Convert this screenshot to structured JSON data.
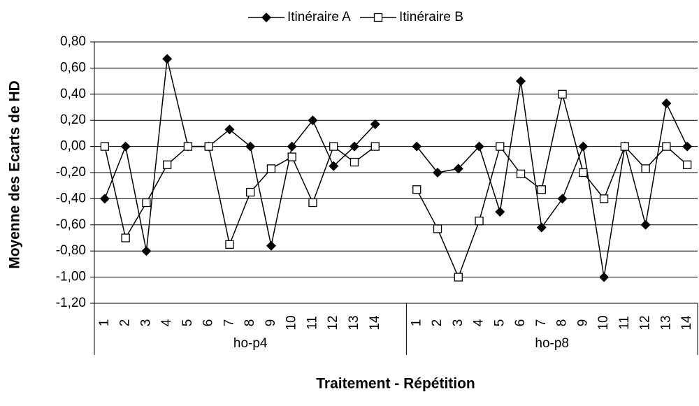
{
  "chart_data": {
    "type": "line",
    "xlabel": "Traitement - Répétition",
    "ylabel": "Moyenne des Ecarts de HD",
    "categories": [
      "1",
      "2",
      "3",
      "4",
      "5",
      "6",
      "7",
      "8",
      "9",
      "10",
      "11",
      "12",
      "13",
      "14",
      null,
      "1",
      "2",
      "3",
      "4",
      "5",
      "6",
      "7",
      "8",
      "9",
      "10",
      "11",
      "12",
      "13",
      "14"
    ],
    "groups": [
      {
        "label": "ho-p4",
        "size": 15
      },
      {
        "label": "ho-p8",
        "size": 14
      }
    ],
    "series": [
      {
        "name": "Itinéraire A",
        "color": "#000000",
        "marker": "diamond",
        "values": [
          -0.4,
          0.0,
          -0.8,
          0.67,
          0.0,
          0.0,
          0.13,
          0.0,
          -0.76,
          0.0,
          0.2,
          -0.15,
          0.0,
          0.17,
          null,
          0.0,
          -0.2,
          -0.17,
          0.0,
          -0.5,
          0.5,
          -0.62,
          -0.4,
          0.0,
          -1.0,
          0.0,
          -0.6,
          0.33,
          0.0
        ]
      },
      {
        "name": "Itinéraire B",
        "color": "#000000",
        "marker": "square",
        "values": [
          0.0,
          -0.7,
          -0.43,
          -0.14,
          0.0,
          0.0,
          -0.75,
          -0.35,
          -0.17,
          -0.08,
          -0.43,
          0.0,
          -0.12,
          0.0,
          null,
          -0.33,
          -0.63,
          -1.0,
          -0.57,
          0.0,
          -0.21,
          -0.33,
          0.4,
          -0.2,
          -0.4,
          0.0,
          -0.17,
          0.0,
          -0.14
        ]
      }
    ],
    "ylim": [
      -1.2,
      0.8
    ],
    "yticks": [
      {
        "value": -1.2,
        "label": "-1,20"
      },
      {
        "value": -1.0,
        "label": "-1,00"
      },
      {
        "value": -0.8,
        "label": "-0,80"
      },
      {
        "value": -0.6,
        "label": "-0,60"
      },
      {
        "value": -0.4,
        "label": "-0,40"
      },
      {
        "value": -0.2,
        "label": "-0,20"
      },
      {
        "value": 0,
        "label": "0,00"
      },
      {
        "value": 0.2,
        "label": "0,20"
      },
      {
        "value": 0.4,
        "label": "0,40"
      },
      {
        "value": 0.6,
        "label": "0,60"
      },
      {
        "value": 0.8,
        "label": "0,80"
      }
    ],
    "grid": true,
    "legend": "top"
  }
}
